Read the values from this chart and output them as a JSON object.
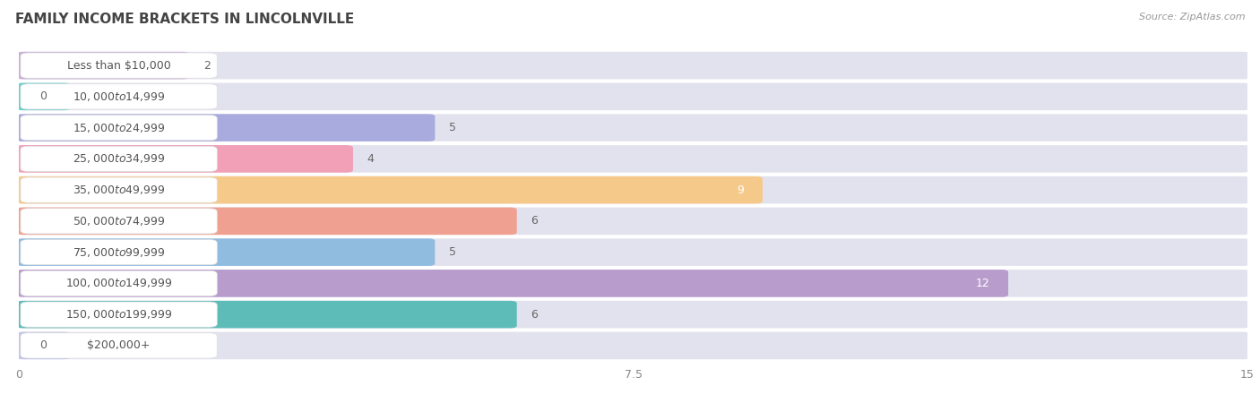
{
  "title": "FAMILY INCOME BRACKETS IN LINCOLNVILLE",
  "source": "Source: ZipAtlas.com",
  "categories": [
    "Less than $10,000",
    "$10,000 to $14,999",
    "$15,000 to $24,999",
    "$25,000 to $34,999",
    "$35,000 to $49,999",
    "$50,000 to $74,999",
    "$75,000 to $99,999",
    "$100,000 to $149,999",
    "$150,000 to $199,999",
    "$200,000+"
  ],
  "values": [
    2,
    0,
    5,
    4,
    9,
    6,
    5,
    12,
    6,
    0
  ],
  "bar_colors": [
    "#cbaed4",
    "#6ecec8",
    "#a9aade",
    "#f2a0b8",
    "#f5c98a",
    "#f0a090",
    "#90bce0",
    "#b89ccc",
    "#5dbcb8",
    "#c4c4e8"
  ],
  "xlim": [
    0,
    15
  ],
  "xticks": [
    0,
    7.5,
    15
  ],
  "background_color": "#ffffff",
  "bar_row_bg": "#f0f0f5",
  "bar_bg_color": "#e2e2ee",
  "label_color": "#555555",
  "value_color_inside": "#ffffff",
  "value_color_outside": "#666666",
  "title_fontsize": 11,
  "label_fontsize": 9,
  "value_fontsize": 9,
  "source_fontsize": 8
}
